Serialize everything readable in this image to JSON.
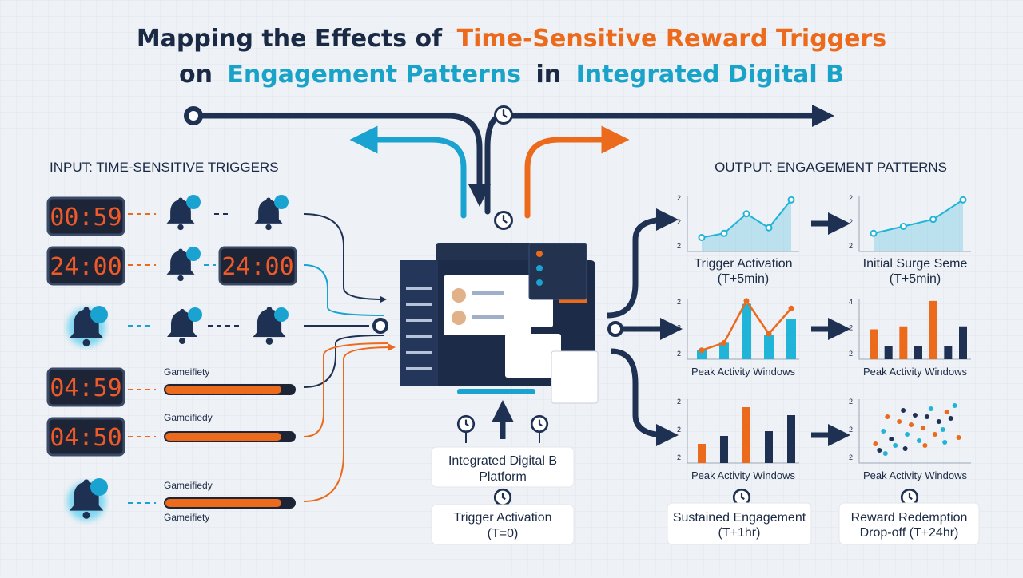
{
  "title": {
    "line1": [
      "Mapping the Effects of",
      "Time-Sensitive Reward Triggers"
    ],
    "line2": [
      "on",
      "Engagement Patterns",
      "in",
      "Integrated Digital B"
    ]
  },
  "input": {
    "heading": "INPUT: TIME-SENSITIVE TRIGGERS",
    "timers": [
      "00:59",
      "24:00",
      "24:00",
      "04:59",
      "04:50"
    ],
    "progress_labels": [
      "Gameifiety",
      "Gameifiedy",
      "Gameifiedy",
      "Gameifiety"
    ]
  },
  "center": {
    "platform": [
      "Integrated Digital B",
      "Platform"
    ],
    "trigger": [
      "Trigger Activation",
      "(T=0)"
    ]
  },
  "output": {
    "heading": "OUTPUT: ENGAGEMENT PATTERNS",
    "panels": [
      {
        "type": "line",
        "caption": [
          "Trigger Activation",
          "(T+5min)"
        ],
        "ytick_labels": [
          "2",
          "2",
          "2"
        ],
        "ylim": [
          0,
          4
        ],
        "series": [
          {
            "color": "#1fb4d8",
            "values": [
              1.0,
              1.3,
              2.7,
              1.7,
              3.7
            ]
          }
        ]
      },
      {
        "type": "line",
        "caption": [
          "Initial Surge Seme",
          "(T+5min)"
        ],
        "ytick_labels": [
          "2",
          "2",
          "2"
        ],
        "ylim": [
          0,
          4
        ],
        "series": [
          {
            "color": "#1fb4d8",
            "values": [
              1.3,
              1.8,
              2.3,
              3.7
            ]
          }
        ]
      },
      {
        "type": "combo",
        "caption": [
          "Peak Activity Windows"
        ],
        "ytick_labels": [
          "2",
          "2",
          "2"
        ],
        "ylim": [
          0,
          4
        ],
        "series": [
          {
            "color": "#1fb4d8",
            "values": [
              0.6,
              1.1,
              3.7,
              1.6,
              2.7
            ]
          },
          {
            "color": "#ec6a1c",
            "values": [
              0.6,
              1.1,
              3.9,
              1.7,
              3.4
            ]
          }
        ]
      },
      {
        "type": "bar",
        "caption": [
          "Peak Activity Windows"
        ],
        "ytick_labels": [
          "4",
          "2",
          "2"
        ],
        "ylim": [
          0,
          4
        ],
        "colors": [
          "#ec6a1c",
          "#1f3152",
          "#ec6a1c",
          "#1f3152",
          "#ec6a1c",
          "#1f3152",
          "#1f3152"
        ],
        "series": [
          {
            "values": [
              2.0,
              0.9,
              2.2,
              0.9,
              3.9,
              0.9,
              2.2
            ]
          }
        ]
      },
      {
        "type": "bar",
        "caption": [
          "Peak Activity Windows"
        ],
        "ytick_labels": [
          "2",
          "2",
          "2"
        ],
        "ylim": [
          0,
          4
        ],
        "colors": [
          "#ec6a1c",
          "#1f3152",
          "#ec6a1c",
          "#1f3152",
          "#1f3152"
        ],
        "series": [
          {
            "values": [
              1.2,
              1.7,
              3.5,
              2.0,
              3.0
            ]
          }
        ]
      },
      {
        "type": "scatter",
        "caption": [
          "Peak Activity Windows"
        ],
        "ytick_labels": [
          "2",
          "2",
          "2"
        ],
        "ylim": [
          0,
          4
        ],
        "xlim": [
          0,
          10
        ],
        "x": [
          1.0,
          1.8,
          2.6,
          3.4,
          4.2,
          5.0,
          5.8,
          6.6,
          7.4,
          8.2,
          9.0,
          1.4,
          2.2,
          3.0,
          3.8,
          4.6,
          5.4,
          6.2,
          7.0,
          7.8,
          8.6,
          9.4,
          2.0,
          4.0,
          6.0,
          8.0
        ],
        "y": [
          1.2,
          2.0,
          1.5,
          2.6,
          1.8,
          3.0,
          2.2,
          3.4,
          2.6,
          3.2,
          3.6,
          0.8,
          2.9,
          1.1,
          3.3,
          2.4,
          1.4,
          2.9,
          1.8,
          2.1,
          2.8,
          1.6,
          0.6,
          0.9,
          1.1,
          1.3
        ],
        "colors": [
          "#ec6a1c",
          "#1fb4d8",
          "#1f3152",
          "#ec6a1c",
          "#1fb4d8",
          "#1f3152",
          "#ec6a1c",
          "#1fb4d8",
          "#1f3152",
          "#ec6a1c",
          "#1fb4d8",
          "#1f3152",
          "#ec6a1c",
          "#1fb4d8",
          "#1f3152",
          "#ec6a1c",
          "#1fb4d8",
          "#1f3152",
          "#ec6a1c",
          "#1fb4d8",
          "#1f3152",
          "#ec6a1c",
          "#1fb4d8",
          "#1f3152",
          "#ec6a1c",
          "#1fb4d8"
        ]
      }
    ],
    "boxes": [
      [
        "Sustained Engagement",
        "(T+1hr)"
      ],
      [
        "Reward Redemption",
        "Drop-off (T+24hr)"
      ]
    ]
  }
}
